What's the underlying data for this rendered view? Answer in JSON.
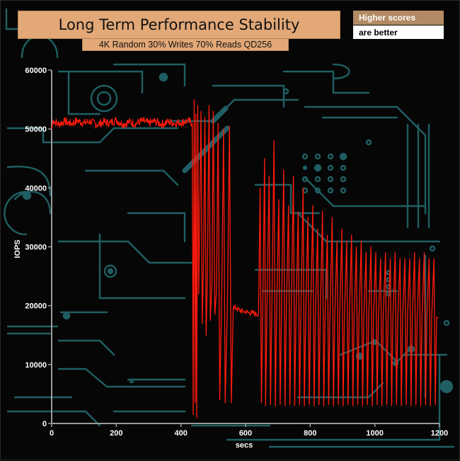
{
  "chart_data": {
    "type": "line",
    "title": "Long Term Performance Stability",
    "subtitle": "4K Random 30% Writes 70% Reads QD256",
    "legend_note": [
      "Higher scores",
      "are better"
    ],
    "xlabel": "secs",
    "ylabel": "IOPS",
    "xlim": [
      0,
      1200
    ],
    "ylim": [
      0,
      60000
    ],
    "x_ticks": [
      "0",
      "200",
      "400",
      "600",
      "800",
      "1000",
      "1200"
    ],
    "y_ticks": [
      "0",
      "10000",
      "20000",
      "30000",
      "40000",
      "50000",
      "60000"
    ],
    "grid": false,
    "series": [
      {
        "color": "#ff1a0d",
        "points": [
          [
            0,
            50000
          ],
          [
            5,
            51500
          ],
          [
            20,
            50800
          ],
          [
            40,
            51300
          ],
          [
            60,
            50900
          ],
          [
            80,
            51400
          ],
          [
            100,
            51000
          ],
          [
            120,
            51300
          ],
          [
            140,
            50700
          ],
          [
            160,
            51200
          ],
          [
            180,
            51000
          ],
          [
            200,
            51500
          ],
          [
            220,
            50800
          ],
          [
            240,
            51200
          ],
          [
            260,
            50900
          ],
          [
            280,
            51400
          ],
          [
            300,
            51000
          ],
          [
            320,
            51300
          ],
          [
            340,
            50800
          ],
          [
            360,
            51200
          ],
          [
            380,
            51000
          ],
          [
            400,
            51100
          ],
          [
            420,
            51400
          ],
          [
            435,
            51000
          ],
          [
            438,
            1500
          ],
          [
            441,
            55000
          ],
          [
            444,
            3500
          ],
          [
            446,
            52500
          ],
          [
            449,
            1000
          ],
          [
            452,
            54000
          ],
          [
            455,
            22000
          ],
          [
            458,
            35000
          ],
          [
            462,
            53000
          ],
          [
            466,
            17000
          ],
          [
            470,
            27000
          ],
          [
            474,
            52000
          ],
          [
            478,
            15000
          ],
          [
            482,
            25500
          ],
          [
            487,
            54000
          ],
          [
            491,
            17500
          ],
          [
            496,
            24000
          ],
          [
            500,
            53000
          ],
          [
            505,
            18500
          ],
          [
            510,
            22500
          ],
          [
            515,
            51000
          ],
          [
            520,
            4000
          ],
          [
            526,
            21000
          ],
          [
            532,
            50000
          ],
          [
            537,
            3500
          ],
          [
            544,
            20500
          ],
          [
            550,
            50500
          ],
          [
            556,
            3500
          ],
          [
            562,
            19800
          ],
          [
            572,
            19500
          ],
          [
            582,
            19200
          ],
          [
            592,
            19000
          ],
          [
            600,
            19000
          ],
          [
            610,
            18800
          ],
          [
            620,
            18800
          ],
          [
            630,
            18600
          ],
          [
            640,
            18600
          ],
          [
            645,
            40000
          ],
          [
            649,
            3500
          ],
          [
            653,
            18500
          ],
          [
            659,
            45000
          ],
          [
            662,
            3000
          ],
          [
            666,
            18400
          ],
          [
            673,
            42000
          ],
          [
            677,
            3200
          ],
          [
            681,
            18300
          ],
          [
            688,
            48000
          ],
          [
            692,
            3000
          ],
          [
            696,
            18300
          ],
          [
            703,
            38000
          ],
          [
            707,
            3200
          ],
          [
            711,
            18200
          ],
          [
            718,
            43000
          ],
          [
            722,
            3000
          ],
          [
            726,
            18200
          ],
          [
            733,
            37000
          ],
          [
            737,
            3200
          ],
          [
            741,
            18100
          ],
          [
            748,
            42000
          ],
          [
            752,
            3000
          ],
          [
            756,
            18100
          ],
          [
            763,
            36000
          ],
          [
            767,
            3200
          ],
          [
            771,
            18100
          ],
          [
            778,
            40000
          ],
          [
            782,
            3000
          ],
          [
            786,
            18000
          ],
          [
            793,
            35000
          ],
          [
            797,
            3200
          ],
          [
            801,
            18000
          ],
          [
            808,
            37000
          ],
          [
            812,
            3000
          ],
          [
            816,
            18000
          ],
          [
            823,
            33000
          ],
          [
            827,
            3200
          ],
          [
            831,
            18000
          ],
          [
            838,
            36000
          ],
          [
            842,
            3000
          ],
          [
            846,
            18000
          ],
          [
            853,
            32000
          ],
          [
            857,
            3200
          ],
          [
            861,
            18000
          ],
          [
            868,
            35000
          ],
          [
            872,
            3000
          ],
          [
            876,
            18000
          ],
          [
            883,
            31000
          ],
          [
            887,
            3200
          ],
          [
            891,
            18000
          ],
          [
            898,
            33000
          ],
          [
            902,
            3000
          ],
          [
            906,
            18000
          ],
          [
            913,
            31000
          ],
          [
            917,
            3200
          ],
          [
            921,
            18000
          ],
          [
            928,
            32000
          ],
          [
            932,
            3000
          ],
          [
            936,
            18000
          ],
          [
            943,
            30000
          ],
          [
            947,
            3200
          ],
          [
            951,
            18000
          ],
          [
            958,
            31000
          ],
          [
            962,
            3000
          ],
          [
            966,
            18000
          ],
          [
            973,
            29000
          ],
          [
            977,
            3200
          ],
          [
            981,
            18000
          ],
          [
            988,
            30000
          ],
          [
            992,
            3000
          ],
          [
            996,
            18000
          ],
          [
            1003,
            29000
          ],
          [
            1007,
            3200
          ],
          [
            1011,
            18000
          ],
          [
            1018,
            28000
          ],
          [
            1022,
            3000
          ],
          [
            1026,
            18000
          ],
          [
            1033,
            29000
          ],
          [
            1037,
            3200
          ],
          [
            1041,
            18000
          ],
          [
            1048,
            28000
          ],
          [
            1052,
            3000
          ],
          [
            1056,
            18000
          ],
          [
            1063,
            29000
          ],
          [
            1067,
            3200
          ],
          [
            1071,
            18000
          ],
          [
            1078,
            28000
          ],
          [
            1082,
            3000
          ],
          [
            1086,
            18000
          ],
          [
            1093,
            28000
          ],
          [
            1097,
            3200
          ],
          [
            1101,
            18000
          ],
          [
            1108,
            28000
          ],
          [
            1112,
            3000
          ],
          [
            1116,
            18000
          ],
          [
            1123,
            29000
          ],
          [
            1127,
            3200
          ],
          [
            1131,
            18000
          ],
          [
            1138,
            28000
          ],
          [
            1142,
            3000
          ],
          [
            1146,
            18000
          ],
          [
            1153,
            29000
          ],
          [
            1157,
            3200
          ],
          [
            1161,
            18000
          ],
          [
            1168,
            28000
          ],
          [
            1172,
            3000
          ],
          [
            1176,
            18000
          ],
          [
            1183,
            28000
          ],
          [
            1187,
            3200
          ],
          [
            1191,
            18000
          ],
          [
            1197,
            18000
          ]
        ]
      }
    ]
  }
}
